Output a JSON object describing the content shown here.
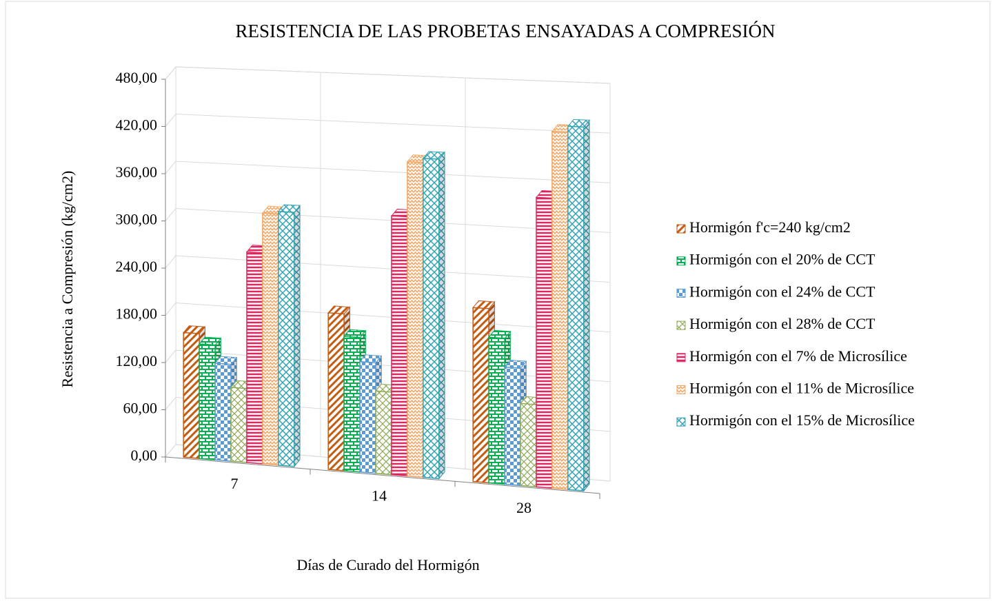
{
  "chart_data": {
    "type": "bar3d",
    "title": "RESISTENCIA DE LAS PROBETAS ENSAYADAS A COMPRESIÓN",
    "x_label": "Días de Curado del Hormigón",
    "y_label": "Resistencia a Compresión (kg/cm2)",
    "categories": [
      "7",
      "14",
      "28"
    ],
    "series": [
      {
        "name": "Hormigón f'c=240 kg/cm2",
        "color": "#c55a11",
        "pattern": "diagonal",
        "values": [
          158,
          195,
          213
        ]
      },
      {
        "name": "Hormigón con el 20% de CCT",
        "color": "#00b050",
        "pattern": "brick",
        "values": [
          145,
          167,
          178
        ]
      },
      {
        "name": "Hormigón con el 24% de CCT",
        "color": "#5b9bd5",
        "pattern": "checker",
        "values": [
          122,
          137,
          143
        ]
      },
      {
        "name": "Hormigón con el 28% de CCT",
        "color": "#8faa54",
        "pattern": "zigzag",
        "values": [
          93,
          102,
          100
        ]
      },
      {
        "name": "Hormigón con el 7% de Microsílice",
        "color": "#e0245e",
        "pattern": "hstripe",
        "values": [
          265,
          320,
          352
        ]
      },
      {
        "name": "Hormigón con el 11% de Microsílice",
        "color": "#f4a460",
        "pattern": "wave",
        "values": [
          315,
          388,
          433
        ]
      },
      {
        "name": "Hormigón con el 15% de Microsílice",
        "color": "#31a3b5",
        "pattern": "diamond",
        "values": [
          318,
          393,
          440
        ]
      }
    ],
    "ylim": [
      0,
      480
    ],
    "yticks": [
      {
        "value": 0,
        "label": "0,00"
      },
      {
        "value": 60,
        "label": "60,00"
      },
      {
        "value": 120,
        "label": "120,00"
      },
      {
        "value": 180,
        "label": "180,00"
      },
      {
        "value": 240,
        "label": "240,00"
      },
      {
        "value": 300,
        "label": "300,00"
      },
      {
        "value": 360,
        "label": "360,00"
      },
      {
        "value": 420,
        "label": "420,00"
      },
      {
        "value": 480,
        "label": "480,00"
      }
    ],
    "grid": true,
    "legend": "right"
  }
}
